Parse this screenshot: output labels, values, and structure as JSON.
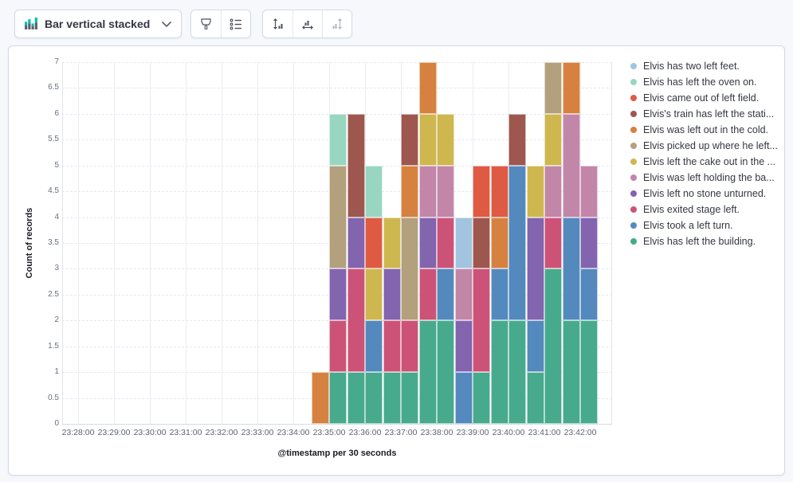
{
  "toolbar": {
    "chart_type_label": "Bar vertical stacked",
    "chart_type_icon": "bar-vertical-stacked-icon",
    "buttons": [
      {
        "name": "visual-options",
        "icon": "brush-icon",
        "enabled": true
      },
      {
        "name": "legend-settings",
        "icon": "legend-list-icon",
        "enabled": true
      },
      {
        "name": "left-axis",
        "icon": "axis-left-icon",
        "enabled": true
      },
      {
        "name": "bottom-axis",
        "icon": "axis-bottom-icon",
        "enabled": true
      },
      {
        "name": "right-axis",
        "icon": "axis-right-icon",
        "enabled": false
      }
    ]
  },
  "colors": {
    "page_bg": "#F6F8FC",
    "border": "#D3DAE6",
    "icon_accent_green": "#00BFB3",
    "icon_gray": "#5A606B"
  },
  "chart_data": {
    "type": "bar",
    "stacked": true,
    "orientation": "vertical",
    "xlabel": "@timestamp per 30 seconds",
    "ylabel": "Count of records",
    "ylim": [
      0,
      7
    ],
    "grid": true,
    "legend_position": "right",
    "bucket_seconds": 30,
    "y_ticks": [
      0,
      0.5,
      1,
      1.5,
      2,
      2.5,
      3,
      3.5,
      4,
      4.5,
      5,
      5.5,
      6,
      6.5,
      7
    ],
    "x_ticks": [
      "23:28:00",
      "23:29:00",
      "23:30:00",
      "23:31:00",
      "23:32:00",
      "23:33:00",
      "23:34:00",
      "23:35:00",
      "23:36:00",
      "23:37:00",
      "23:38:00",
      "23:39:00",
      "23:40:00",
      "23:41:00",
      "23:42:00"
    ],
    "series": [
      {
        "label": "Elvis has two left feet.",
        "color": "#A2C4DE"
      },
      {
        "label": "Elvis has left the oven on.",
        "color": "#98D6C2"
      },
      {
        "label": "Elvis came out of left field.",
        "color": "#DF5A43"
      },
      {
        "label": "Elvis's train has left the stati...",
        "color": "#9D574E"
      },
      {
        "label": "Elvis was left out in the cold.",
        "color": "#D6813F"
      },
      {
        "label": "Elvis picked up where he left...",
        "color": "#B3A07D"
      },
      {
        "label": "Elvis left the cake out in the ...",
        "color": "#CFB750"
      },
      {
        "label": "Elvis was left holding the ba...",
        "color": "#C286A9"
      },
      {
        "label": "Elvis left no stone unturned.",
        "color": "#8264AF"
      },
      {
        "label": "Elvis exited stage left.",
        "color": "#CC5377"
      },
      {
        "label": "Elvis took a left turn.",
        "color": "#5489BD"
      },
      {
        "label": "Elvis has left the building.",
        "color": "#47AA8C"
      }
    ],
    "buckets_note": "segments are [seriesIndex, count] listed bottom-to-top",
    "buckets": [
      {
        "time": "23:34:30",
        "segments": [
          [
            4,
            1
          ]
        ]
      },
      {
        "time": "23:35:00",
        "segments": [
          [
            11,
            1
          ],
          [
            9,
            1
          ],
          [
            8,
            1
          ],
          [
            5,
            2
          ],
          [
            1,
            1
          ]
        ]
      },
      {
        "time": "23:35:30",
        "segments": [
          [
            11,
            1
          ],
          [
            9,
            2
          ],
          [
            8,
            1
          ],
          [
            3,
            2
          ]
        ]
      },
      {
        "time": "23:36:00",
        "segments": [
          [
            11,
            1
          ],
          [
            10,
            1
          ],
          [
            6,
            1
          ],
          [
            2,
            1
          ],
          [
            1,
            1
          ]
        ]
      },
      {
        "time": "23:36:30",
        "segments": [
          [
            11,
            1
          ],
          [
            9,
            1
          ],
          [
            8,
            1
          ],
          [
            6,
            1
          ]
        ]
      },
      {
        "time": "23:37:00",
        "segments": [
          [
            11,
            1
          ],
          [
            9,
            1
          ],
          [
            5,
            2
          ],
          [
            4,
            1
          ],
          [
            3,
            1
          ]
        ]
      },
      {
        "time": "23:37:30",
        "segments": [
          [
            11,
            2
          ],
          [
            9,
            1
          ],
          [
            8,
            1
          ],
          [
            7,
            1
          ],
          [
            6,
            1
          ],
          [
            4,
            1
          ]
        ]
      },
      {
        "time": "23:38:00",
        "segments": [
          [
            11,
            2
          ],
          [
            10,
            1
          ],
          [
            9,
            1
          ],
          [
            7,
            1
          ],
          [
            6,
            1
          ]
        ]
      },
      {
        "time": "23:38:30",
        "segments": [
          [
            10,
            1
          ],
          [
            8,
            1
          ],
          [
            7,
            1
          ],
          [
            0,
            1
          ]
        ]
      },
      {
        "time": "23:39:00",
        "segments": [
          [
            11,
            1
          ],
          [
            9,
            2
          ],
          [
            3,
            1
          ],
          [
            2,
            1
          ]
        ]
      },
      {
        "time": "23:39:30",
        "segments": [
          [
            11,
            2
          ],
          [
            10,
            1
          ],
          [
            4,
            1
          ],
          [
            2,
            1
          ]
        ]
      },
      {
        "time": "23:40:00",
        "segments": [
          [
            11,
            2
          ],
          [
            10,
            3
          ],
          [
            3,
            1
          ]
        ]
      },
      {
        "time": "23:40:30",
        "segments": [
          [
            11,
            1
          ],
          [
            10,
            1
          ],
          [
            8,
            2
          ],
          [
            6,
            1
          ]
        ]
      },
      {
        "time": "23:41:00",
        "segments": [
          [
            11,
            3
          ],
          [
            9,
            1
          ],
          [
            7,
            1
          ],
          [
            6,
            1
          ],
          [
            5,
            1
          ]
        ]
      },
      {
        "time": "23:41:30",
        "segments": [
          [
            11,
            2
          ],
          [
            10,
            2
          ],
          [
            7,
            2
          ],
          [
            4,
            1
          ]
        ]
      },
      {
        "time": "23:42:00",
        "segments": [
          [
            11,
            2
          ],
          [
            10,
            1
          ],
          [
            8,
            1
          ],
          [
            7,
            1
          ]
        ]
      }
    ]
  }
}
